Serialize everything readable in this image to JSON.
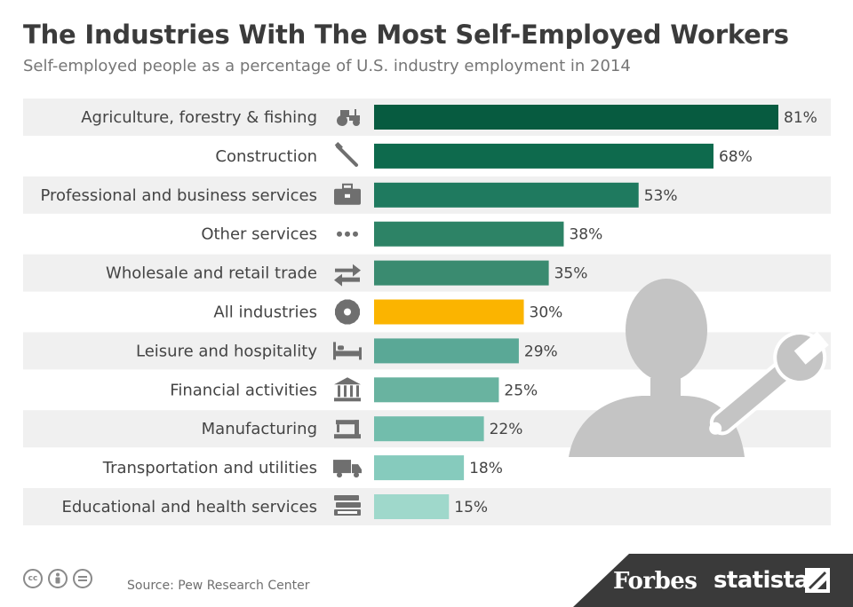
{
  "title": "The Industries With The Most Self-Employed Workers",
  "subtitle": "Self-employed people as a percentage of U.S. industry employment in 2014",
  "source": "Source: Pew Research Center",
  "brands": {
    "forbes": "Forbes",
    "statista": "statista"
  },
  "license_icons": [
    "cc-icon",
    "attribution-icon",
    "no-derivatives-icon"
  ],
  "colors": {
    "highlight": "#fbb400",
    "stripe": "#f0f0f0",
    "footer": "#3a3a3a",
    "bar_gradient": [
      "#075b40",
      "#0e6a4d",
      "#1f7a5f",
      "#2d8366",
      "#3a8b70",
      "#5aa896",
      "#69b3a0",
      "#72bdac",
      "#86cbbd",
      "#9fd8cb"
    ]
  },
  "chart_data": {
    "type": "bar",
    "orientation": "horizontal",
    "unit": "%",
    "categories": [
      "Agriculture, forestry & fishing",
      "Construction",
      "Professional and business services",
      "Other services",
      "Wholesale and retail trade",
      "All industries",
      "Leisure and hospitality",
      "Financial activities",
      "Manufacturing",
      "Transportation and utilities",
      "Educational and health services"
    ],
    "values": [
      81,
      68,
      53,
      38,
      35,
      30,
      29,
      25,
      22,
      18,
      15
    ],
    "data_labels": [
      "81%",
      "68%",
      "53%",
      "38%",
      "35%",
      "30%",
      "29%",
      "25%",
      "22%",
      "18%",
      "15%"
    ],
    "highlight_category": "All industries",
    "icons": [
      "tractor-icon",
      "tools-icon",
      "briefcase-icon",
      "more-dots-icon",
      "exchange-arrows-icon",
      "gear-icon",
      "bed-icon",
      "bank-icon",
      "sewing-machine-icon",
      "truck-icon",
      "books-icon"
    ],
    "xlim": [
      0,
      81
    ],
    "grid": false,
    "legend": "none"
  }
}
